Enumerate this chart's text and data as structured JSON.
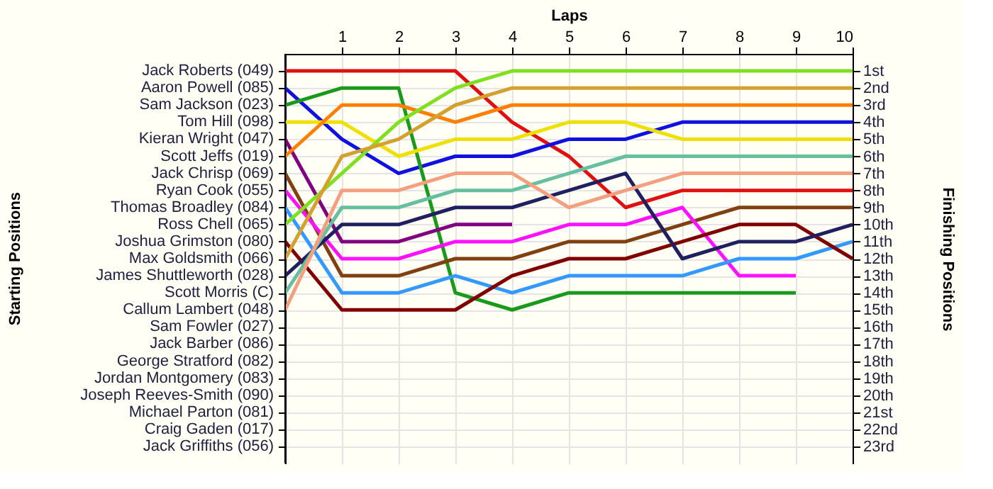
{
  "chart_data": {
    "type": "line",
    "xlabel": "Laps",
    "ylabel": "Finishing Positions",
    "x": [
      0,
      1,
      2,
      3,
      4,
      5,
      6,
      7,
      8,
      9,
      10
    ],
    "xlim": [
      0,
      10
    ],
    "xticks": [
      1,
      2,
      3,
      4,
      5,
      6,
      7,
      8,
      9,
      10
    ],
    "ylim": [
      24,
      0
    ],
    "yticks": [
      {
        "value": 1,
        "label": "1st"
      },
      {
        "value": 2,
        "label": "2nd"
      },
      {
        "value": 3,
        "label": "3rd"
      },
      {
        "value": 4,
        "label": "4th"
      },
      {
        "value": 5,
        "label": "5th"
      },
      {
        "value": 6,
        "label": "6th"
      },
      {
        "value": 7,
        "label": "7th"
      },
      {
        "value": 8,
        "label": "8th"
      },
      {
        "value": 9,
        "label": "9th"
      },
      {
        "value": 10,
        "label": "10th"
      },
      {
        "value": 11,
        "label": "11th"
      },
      {
        "value": 12,
        "label": "12th"
      },
      {
        "value": 13,
        "label": "13th"
      },
      {
        "value": 14,
        "label": "14th"
      },
      {
        "value": 15,
        "label": "15th"
      },
      {
        "value": 16,
        "label": "16th"
      },
      {
        "value": 17,
        "label": "17th"
      },
      {
        "value": 18,
        "label": "18th"
      },
      {
        "value": 19,
        "label": "19th"
      },
      {
        "value": 20,
        "label": "20th"
      },
      {
        "value": 21,
        "label": "21st"
      },
      {
        "value": 22,
        "label": "22nd"
      },
      {
        "value": 23,
        "label": "23rd"
      }
    ],
    "annotations": [
      "Jack Roberts (049)",
      "Aaron Powell (085)",
      "Sam Jackson (023)",
      "Tom Hill (098)",
      "Kieran Wright (047)",
      "Scott Jeffs (019)",
      "Jack Chrisp (069)",
      "Ryan Cook (055)",
      "Thomas Broadley (084)",
      "Ross Chell (065)",
      "Joshua Grimston (080)",
      "Max Goldsmith (066)",
      "James Shuttleworth (028)",
      "Scott Morris (C)",
      "Callum Lambert (048)",
      "Sam Fowler (027)",
      "Jack Barber (086)",
      "George Stratford (082)",
      "Jordan Montgomery (083)",
      "Joseph Reeves-Smith (090)",
      "Michael Parton (081)",
      "Craig Gaden (017)",
      "Jack Griffiths (056)",
      "Starting Positions"
    ],
    "grid": true,
    "legend": false,
    "series": [
      {
        "color": "#e01010",
        "values": [
          1,
          1,
          1,
          1,
          4,
          6,
          9,
          8,
          8,
          8,
          8
        ]
      },
      {
        "color": "#1010e0",
        "values": [
          2,
          5,
          7,
          6,
          6,
          5,
          5,
          4,
          4,
          4,
          4
        ]
      },
      {
        "color": "#1a9a1a",
        "values": [
          3,
          2,
          2,
          14,
          15,
          14,
          14,
          14,
          14,
          14,
          null
        ]
      },
      {
        "color": "#f0e000",
        "values": [
          4,
          4,
          6,
          5,
          5,
          4,
          4,
          5,
          5,
          5,
          5
        ]
      },
      {
        "color": "#800080",
        "values": [
          5,
          11,
          11,
          10,
          10,
          null,
          null,
          null,
          null,
          null,
          null
        ]
      },
      {
        "color": "#ff8000",
        "values": [
          6,
          3,
          3,
          4,
          3,
          3,
          3,
          3,
          3,
          3,
          3
        ]
      },
      {
        "color": "#804010",
        "values": [
          7,
          13,
          13,
          12,
          12,
          11,
          11,
          10,
          9,
          9,
          9
        ]
      },
      {
        "color": "#ff10ff",
        "values": [
          8,
          12,
          12,
          11,
          11,
          10,
          10,
          9,
          13,
          13,
          null
        ]
      },
      {
        "color": "#3399ff",
        "values": [
          9,
          14,
          14,
          13,
          14,
          13,
          13,
          13,
          12,
          12,
          11
        ]
      },
      {
        "color": "#80e020",
        "values": [
          10,
          7,
          4,
          2,
          1,
          1,
          1,
          1,
          1,
          1,
          1
        ]
      },
      {
        "color": "#800000",
        "values": [
          11,
          15,
          15,
          15,
          13,
          12,
          12,
          11,
          10,
          10,
          12
        ]
      },
      {
        "color": "#d4a030",
        "values": [
          12,
          6,
          5,
          3,
          2,
          2,
          2,
          2,
          2,
          2,
          2
        ]
      },
      {
        "color": "#202060",
        "values": [
          13,
          10,
          10,
          9,
          9,
          8,
          7,
          12,
          11,
          11,
          10
        ]
      },
      {
        "color": "#66c0a0",
        "values": [
          14,
          9,
          9,
          8,
          8,
          7,
          6,
          6,
          6,
          6,
          6
        ]
      },
      {
        "color": "#f4a080",
        "values": [
          15,
          8,
          8,
          7,
          7,
          9,
          8,
          7,
          7,
          7,
          7
        ]
      }
    ]
  }
}
